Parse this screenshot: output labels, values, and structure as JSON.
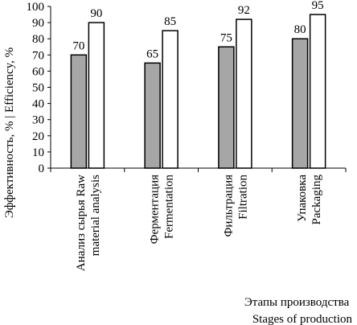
{
  "chart_data": {
    "type": "bar",
    "categories": [
      [
        "Анализ сырья Raw",
        "material analysis"
      ],
      [
        "Ферментация",
        "Fermentation"
      ],
      [
        "Фильтрация",
        "Filtration"
      ],
      [
        "Упаковка",
        "Packaging"
      ]
    ],
    "series": [
      {
        "values": [
          70,
          65,
          75,
          80
        ],
        "color": "#a6a6a6"
      },
      {
        "values": [
          90,
          85,
          92,
          95
        ],
        "color": "#ffffff"
      }
    ],
    "ylabel": "Эффективность, % | Efficiency, %",
    "xlabel": [
      "Этапы производства",
      "Stages of production"
    ],
    "ylim": [
      0,
      100
    ],
    "yticks": [
      0,
      10,
      20,
      30,
      40,
      50,
      60,
      70,
      80,
      90,
      100
    ],
    "grid": false,
    "data_labels": true
  }
}
